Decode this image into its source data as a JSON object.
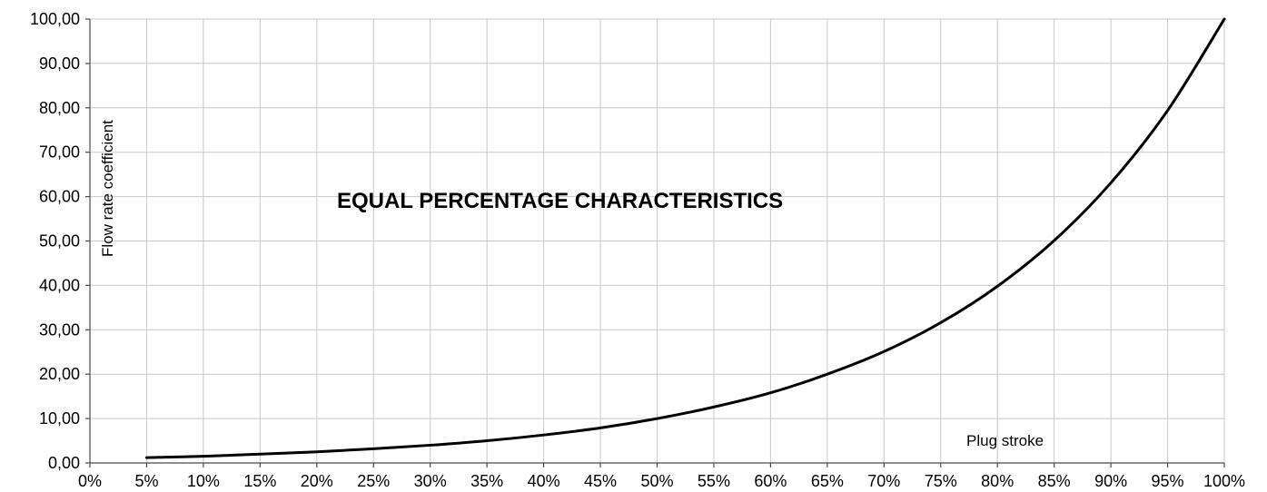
{
  "chart_data": {
    "type": "line",
    "title": "EQUAL PERCENTAGE CHARACTERISTICS",
    "xlabel": "Plug stroke",
    "ylabel": "Flow rate coefficient",
    "xlim": [
      0,
      100
    ],
    "ylim": [
      0,
      100
    ],
    "grid": true,
    "x_tick_labels": [
      "0%",
      "5%",
      "10%",
      "15%",
      "20%",
      "25%",
      "30%",
      "35%",
      "40%",
      "45%",
      "50%",
      "55%",
      "60%",
      "65%",
      "70%",
      "75%",
      "80%",
      "85%",
      "90%",
      "95%",
      "100%"
    ],
    "y_tick_labels": [
      "0,00",
      "10,00",
      "20,00",
      "30,00",
      "40,00",
      "50,00",
      "60,00",
      "70,00",
      "80,00",
      "90,00",
      "100,00"
    ],
    "x": [
      5,
      10,
      15,
      20,
      25,
      30,
      35,
      40,
      45,
      50,
      55,
      60,
      65,
      70,
      75,
      80,
      85,
      90,
      95,
      100
    ],
    "series": [
      {
        "values": [
          1.2,
          1.5,
          2.0,
          2.5,
          3.2,
          4.0,
          5.0,
          6.3,
          7.9,
          10.0,
          12.6,
          15.8,
          20.0,
          25.1,
          31.6,
          39.8,
          50.1,
          63.1,
          79.4,
          100.0
        ],
        "color": "#000000"
      }
    ]
  }
}
